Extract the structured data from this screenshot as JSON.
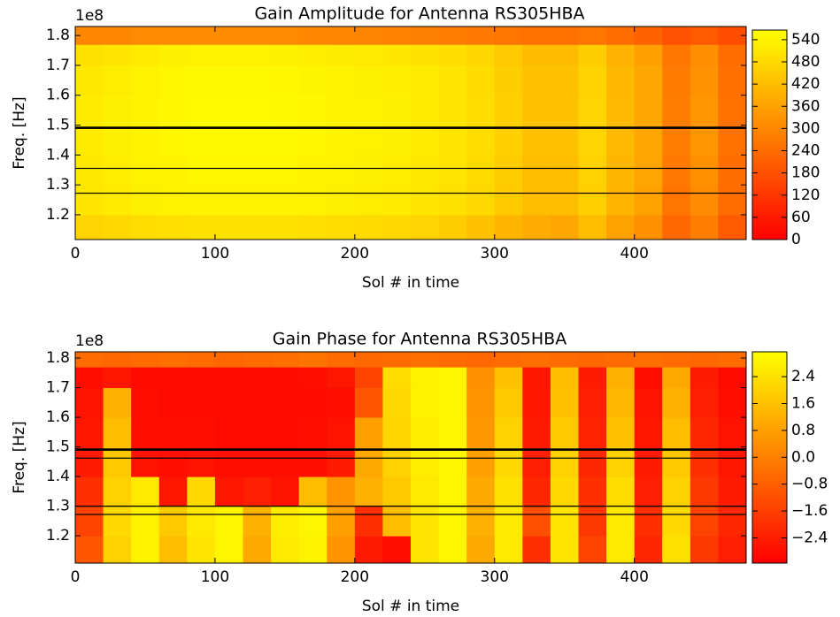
{
  "chart_data": [
    {
      "type": "heatmap",
      "title": "Gain Amplitude for Antenna RS305HBA",
      "xlabel": "Sol # in time",
      "ylabel": "Freq. [Hz]",
      "y_offset_label": "1e8",
      "xlim": [
        0,
        480
      ],
      "ylim": [
        1.117,
        1.83
      ],
      "xticks": [
        0,
        100,
        200,
        300,
        400
      ],
      "yticks": [
        1.2,
        1.3,
        1.4,
        1.5,
        1.6,
        1.7,
        1.8
      ],
      "colormap": "autumn",
      "clim": [
        0,
        566
      ],
      "cticks": [
        0,
        60,
        120,
        180,
        240,
        300,
        360,
        420,
        480,
        540
      ],
      "xbins": [
        0,
        20,
        40,
        60,
        80,
        100,
        120,
        140,
        160,
        180,
        200,
        220,
        240,
        260,
        280,
        300,
        320,
        340,
        360,
        380,
        400,
        420,
        440,
        460,
        480
      ],
      "ybins": [
        1.117,
        1.2,
        1.3,
        1.4,
        1.5,
        1.6,
        1.7,
        1.77,
        1.83
      ],
      "z": [
        [
          470,
          480,
          490,
          495,
          500,
          500,
          500,
          500,
          495,
          490,
          485,
          480,
          470,
          455,
          430,
          400,
          380,
          370,
          420,
          360,
          320,
          230,
          280,
          200
        ],
        [
          510,
          520,
          530,
          535,
          540,
          540,
          540,
          540,
          535,
          530,
          525,
          520,
          510,
          500,
          480,
          450,
          420,
          420,
          460,
          400,
          360,
          260,
          310,
          240
        ],
        [
          515,
          525,
          535,
          540,
          545,
          545,
          545,
          545,
          540,
          535,
          530,
          525,
          515,
          505,
          485,
          455,
          425,
          425,
          465,
          405,
          365,
          270,
          320,
          245
        ],
        [
          520,
          530,
          540,
          545,
          550,
          550,
          550,
          550,
          545,
          540,
          535,
          530,
          520,
          510,
          490,
          460,
          430,
          430,
          470,
          410,
          370,
          280,
          330,
          250
        ],
        [
          520,
          530,
          540,
          548,
          552,
          552,
          552,
          550,
          545,
          540,
          535,
          530,
          520,
          510,
          490,
          460,
          430,
          430,
          470,
          410,
          370,
          280,
          330,
          250
        ],
        [
          515,
          525,
          535,
          545,
          550,
          550,
          550,
          548,
          542,
          538,
          532,
          528,
          518,
          508,
          488,
          458,
          428,
          428,
          468,
          408,
          368,
          275,
          325,
          248
        ],
        [
          500,
          510,
          520,
          530,
          535,
          535,
          535,
          532,
          528,
          522,
          518,
          512,
          502,
          492,
          475,
          445,
          415,
          415,
          455,
          395,
          355,
          265,
          315,
          240
        ],
        [
          300,
          300,
          310,
          310,
          310,
          310,
          310,
          305,
          300,
          300,
          295,
          290,
          285,
          280,
          270,
          260,
          250,
          250,
          260,
          240,
          220,
          180,
          200,
          170
        ]
      ],
      "masked_y": [
        [
          1.487,
          1.495
        ],
        [
          1.355,
          1.357
        ],
        [
          1.272,
          1.274
        ]
      ]
    },
    {
      "type": "heatmap",
      "title": "Gain Phase for Antenna RS305HBA",
      "xlabel": "Sol # in time",
      "ylabel": "Freq. [Hz]",
      "y_offset_label": "1e8",
      "xlim": [
        0,
        480
      ],
      "ylim": [
        1.108,
        1.821
      ],
      "xticks": [
        0,
        100,
        200,
        300,
        400
      ],
      "yticks": [
        1.2,
        1.3,
        1.4,
        1.5,
        1.6,
        1.7,
        1.8
      ],
      "colormap": "autumn",
      "clim": [
        -3.15,
        3.14
      ],
      "cticks": [
        {
          "value": -2.4,
          "label": "−2.4"
        },
        {
          "value": -1.6,
          "label": "−1.6"
        },
        {
          "value": -0.8,
          "label": "−0.8"
        },
        {
          "value": 0,
          "label": "0.0"
        },
        0.8,
        1.6,
        2.4
      ],
      "xbins": [
        0,
        20,
        40,
        60,
        80,
        100,
        120,
        140,
        160,
        180,
        200,
        220,
        240,
        260,
        280,
        300,
        320,
        340,
        360,
        380,
        400,
        420,
        440,
        460,
        480
      ],
      "ybins": [
        1.108,
        1.2,
        1.3,
        1.4,
        1.5,
        1.6,
        1.7,
        1.77,
        1.821
      ],
      "z": [
        [
          -1.0,
          2.0,
          2.8,
          1.5,
          2.5,
          2.9,
          1.0,
          2.6,
          2.8,
          0.5,
          -2.5,
          -2.8,
          2.5,
          2.9,
          1.0,
          2.6,
          -2.0,
          2.5,
          -1.5,
          2.6,
          -2.2,
          2.4,
          -1.8,
          -2.4
        ],
        [
          -1.5,
          2.2,
          2.8,
          1.8,
          2.6,
          2.9,
          1.2,
          2.7,
          2.9,
          0.8,
          -2.0,
          1.5,
          2.5,
          2.9,
          1.2,
          2.6,
          -1.2,
          2.5,
          -1.8,
          2.6,
          -2.0,
          2.2,
          -1.5,
          -2.2
        ],
        [
          -2.0,
          2.0,
          2.6,
          -2.6,
          2.2,
          -2.6,
          -2.4,
          -2.7,
          1.5,
          0.5,
          1.2,
          1.8,
          2.6,
          2.9,
          1.0,
          2.4,
          -2.2,
          2.2,
          -2.0,
          2.3,
          -2.4,
          2.0,
          -1.8,
          -2.5
        ],
        [
          -2.5,
          1.8,
          -2.7,
          -2.8,
          -2.7,
          -2.8,
          -2.8,
          -2.8,
          -2.8,
          -2.5,
          1.0,
          2.0,
          2.7,
          2.9,
          0.8,
          2.2,
          -2.4,
          2.0,
          -2.2,
          2.0,
          -2.5,
          1.8,
          -2.0,
          -2.6
        ],
        [
          -2.6,
          1.5,
          -2.8,
          -2.8,
          -2.8,
          -2.9,
          -2.9,
          -2.9,
          -2.8,
          -2.7,
          0.8,
          2.1,
          2.7,
          2.9,
          0.6,
          2.0,
          -2.5,
          1.8,
          -2.3,
          1.6,
          -2.6,
          1.5,
          -2.2,
          -2.7
        ],
        [
          -2.7,
          1.2,
          -2.8,
          -2.9,
          -2.9,
          -2.9,
          -2.9,
          -2.9,
          -2.9,
          -2.8,
          -1.0,
          2.2,
          2.8,
          2.9,
          0.5,
          1.8,
          -2.6,
          1.6,
          -2.4,
          1.4,
          -2.7,
          1.2,
          -2.4,
          -2.8
        ],
        [
          -2.8,
          -2.6,
          -2.9,
          -2.9,
          -2.9,
          -2.9,
          -2.9,
          -2.9,
          -2.8,
          -2.6,
          -1.5,
          2.3,
          2.8,
          2.9,
          0.4,
          1.6,
          -2.6,
          1.5,
          -2.5,
          1.2,
          -2.8,
          1.0,
          -2.5,
          -2.9
        ],
        [
          -0.5,
          -0.6,
          -0.5,
          -0.4,
          -0.5,
          -0.6,
          -0.5,
          -0.4,
          -0.3,
          -0.5,
          -0.6,
          -0.5,
          -0.4,
          -0.5,
          -0.6,
          -0.5,
          -0.4,
          -0.5,
          -0.6,
          -0.5,
          -0.4,
          -0.5,
          -0.6,
          -0.5
        ]
      ],
      "masked_y": [
        [
          1.487,
          1.495
        ],
        [
          1.462,
          1.464
        ],
        [
          1.298,
          1.302
        ],
        [
          1.272,
          1.274
        ]
      ]
    }
  ]
}
